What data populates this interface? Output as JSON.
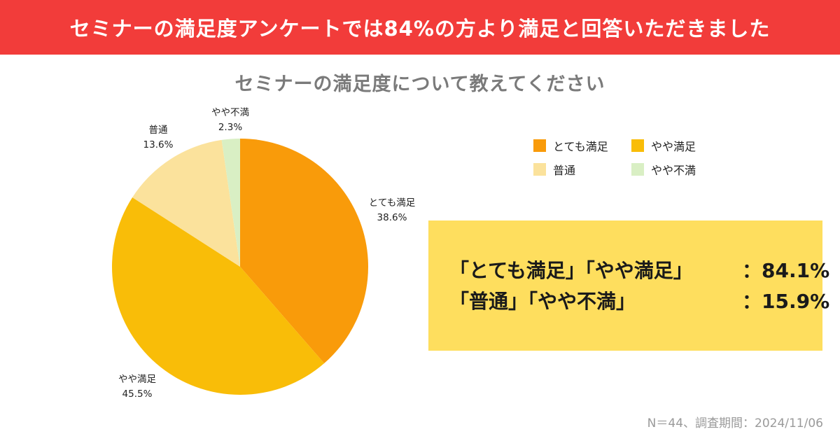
{
  "banner": {
    "title": "セミナーの満足度アンケートでは84%の方より満足と回答いただきました"
  },
  "chart_data": {
    "type": "pie",
    "title": "セミナーの満足度について教えてください",
    "slices": [
      {
        "label": "とても満足",
        "value": 38.6,
        "display": "38.6%",
        "color": "#f99b0a"
      },
      {
        "label": "やや満足",
        "value": 45.5,
        "display": "45.5%",
        "color": "#f9bd08"
      },
      {
        "label": "普通",
        "value": 13.6,
        "display": "13.6%",
        "color": "#fbe29c"
      },
      {
        "label": "やや不満",
        "value": 2.3,
        "display": "2.3%",
        "color": "#d9efc4"
      }
    ],
    "legend": [
      {
        "label": "とても満足",
        "color": "#f99b0a"
      },
      {
        "label": "やや満足",
        "color": "#f9bd08"
      },
      {
        "label": "普通",
        "color": "#fbe29c"
      },
      {
        "label": "やや不満",
        "color": "#d9efc4"
      }
    ],
    "legend_position": "top-right"
  },
  "summary": {
    "row1_label": "「とても満足」「やや満足」",
    "row1_value": "：84.1%",
    "row2_label": "「普通」「やや不満」",
    "row2_value": "：15.9%"
  },
  "footnote": "N＝44、調査期間：2024/11/06"
}
